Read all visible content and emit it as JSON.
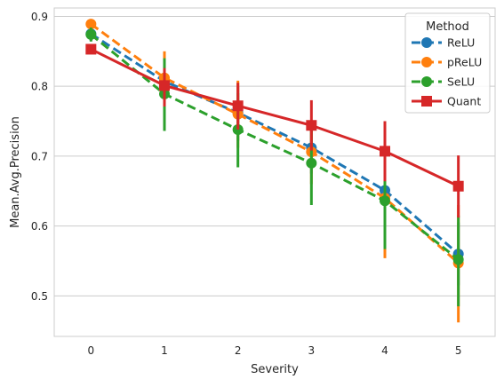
{
  "chart_data": {
    "type": "line",
    "xlabel": "Severity",
    "ylabel": "Mean.Avg.Precision",
    "x": [
      0,
      1,
      2,
      3,
      4,
      5
    ],
    "xlim": [
      -0.5,
      5.5
    ],
    "ylim": [
      0.442,
      0.912
    ],
    "yticks": [
      0.5,
      0.6,
      0.7,
      0.8,
      0.9
    ],
    "grid": true,
    "legend": {
      "title": "Method",
      "placement": "top-right"
    },
    "series": [
      {
        "name": "ReLU",
        "color": "#1f77b4",
        "dashed": true,
        "marker": "circle",
        "values": [
          0.875,
          0.807,
          0.762,
          0.712,
          0.651,
          0.56
        ],
        "ci": [
          [
            0.865,
            0.885
          ],
          [
            0.785,
            0.825
          ],
          [
            0.722,
            0.8
          ],
          [
            0.675,
            0.75
          ],
          [
            0.6,
            0.7
          ],
          [
            0.515,
            0.605
          ]
        ]
      },
      {
        "name": "pReLU",
        "color": "#ff7f0e",
        "dashed": true,
        "marker": "circle",
        "values": [
          0.889,
          0.812,
          0.76,
          0.706,
          0.64,
          0.547
        ],
        "ci": [
          [
            0.883,
            0.895
          ],
          [
            0.775,
            0.85
          ],
          [
            0.712,
            0.808
          ],
          [
            0.66,
            0.75
          ],
          [
            0.554,
            0.705
          ],
          [
            0.462,
            0.63
          ]
        ]
      },
      {
        "name": "SeLU",
        "color": "#2ca02c",
        "dashed": true,
        "marker": "circle",
        "values": [
          0.874,
          0.789,
          0.738,
          0.69,
          0.636,
          0.552
        ],
        "ci": [
          [
            0.864,
            0.884
          ],
          [
            0.736,
            0.84
          ],
          [
            0.684,
            0.79
          ],
          [
            0.63,
            0.745
          ],
          [
            0.567,
            0.701
          ],
          [
            0.485,
            0.615
          ]
        ]
      },
      {
        "name": "Quant",
        "color": "#d62728",
        "dashed": false,
        "marker": "square",
        "values": [
          0.853,
          0.801,
          0.772,
          0.744,
          0.707,
          0.657
        ],
        "ci": [
          [
            0.847,
            0.859
          ],
          [
            0.771,
            0.826
          ],
          [
            0.738,
            0.805
          ],
          [
            0.708,
            0.78
          ],
          [
            0.664,
            0.75
          ],
          [
            0.612,
            0.701
          ]
        ]
      }
    ]
  }
}
